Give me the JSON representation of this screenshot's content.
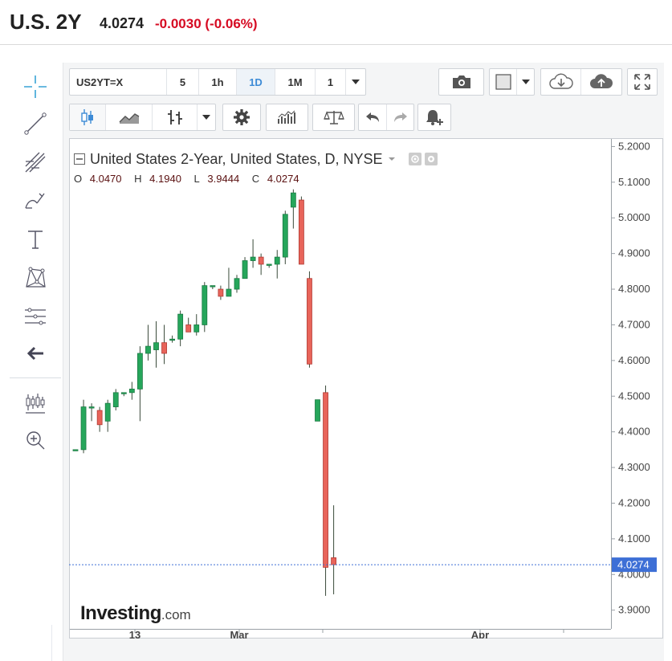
{
  "header": {
    "symbol": "U.S. 2Y",
    "price": "4.0274",
    "change": "-0.0030 (-0.06%)"
  },
  "left_tools": [
    {
      "name": "crosshair-icon"
    },
    {
      "name": "trend-line-icon"
    },
    {
      "name": "fib-icon"
    },
    {
      "name": "brush-icon"
    },
    {
      "name": "text-icon"
    },
    {
      "name": "pattern-icon"
    },
    {
      "name": "measure-icon"
    },
    {
      "name": "arrow-left-icon"
    },
    {
      "name": "indicators-icon"
    },
    {
      "name": "zoom-in-icon"
    }
  ],
  "toolbar": {
    "symbol": "US2YT=X",
    "intervals": [
      "5",
      "1h",
      "1D",
      "1M",
      "1"
    ],
    "active_interval": "1D"
  },
  "chart_data": {
    "type": "candlestick",
    "title": "United States 2-Year, United States, D, NYSE",
    "ohlc_legend": {
      "O": "4.0470",
      "H": "4.1940",
      "L": "3.9444",
      "C": "4.0274"
    },
    "y_ticks": [
      "5.2000",
      "5.1000",
      "5.0000",
      "4.9000",
      "4.8000",
      "4.7000",
      "4.6000",
      "4.5000",
      "4.4000",
      "4.3000",
      "4.2000",
      "4.1000",
      "4.0000",
      "3.9000"
    ],
    "ylim": [
      3.87,
      5.21
    ],
    "x_ticks": [
      "13",
      "Mar",
      "Apr"
    ],
    "last_price_label": "4.0274",
    "up_color": "#26a65b",
    "down_color": "#e8645a",
    "candles": [
      {
        "o": 4.35,
        "h": 4.35,
        "l": 4.35,
        "c": 4.35
      },
      {
        "o": 4.35,
        "h": 4.49,
        "l": 4.34,
        "c": 4.47
      },
      {
        "o": 4.47,
        "h": 4.48,
        "l": 4.43,
        "c": 4.47
      },
      {
        "o": 4.46,
        "h": 4.47,
        "l": 4.4,
        "c": 4.42
      },
      {
        "o": 4.43,
        "h": 4.49,
        "l": 4.4,
        "c": 4.48
      },
      {
        "o": 4.47,
        "h": 4.52,
        "l": 4.46,
        "c": 4.51
      },
      {
        "o": 4.51,
        "h": 4.51,
        "l": 4.5,
        "c": 4.51
      },
      {
        "o": 4.51,
        "h": 4.54,
        "l": 4.49,
        "c": 4.52
      },
      {
        "o": 4.52,
        "h": 4.64,
        "l": 4.43,
        "c": 4.62
      },
      {
        "o": 4.62,
        "h": 4.7,
        "l": 4.6,
        "c": 4.64
      },
      {
        "o": 4.63,
        "h": 4.71,
        "l": 4.58,
        "c": 4.65
      },
      {
        "o": 4.65,
        "h": 4.7,
        "l": 4.59,
        "c": 4.62
      },
      {
        "o": 4.66,
        "h": 4.67,
        "l": 4.65,
        "c": 4.66
      },
      {
        "o": 4.66,
        "h": 4.74,
        "l": 4.64,
        "c": 4.73
      },
      {
        "o": 4.7,
        "h": 4.72,
        "l": 4.68,
        "c": 4.68
      },
      {
        "o": 4.68,
        "h": 4.73,
        "l": 4.67,
        "c": 4.7
      },
      {
        "o": 4.7,
        "h": 4.82,
        "l": 4.68,
        "c": 4.81
      },
      {
        "o": 4.81,
        "h": 4.81,
        "l": 4.8,
        "c": 4.81
      },
      {
        "o": 4.8,
        "h": 4.81,
        "l": 4.77,
        "c": 4.78
      },
      {
        "o": 4.78,
        "h": 4.86,
        "l": 4.78,
        "c": 4.8
      },
      {
        "o": 4.8,
        "h": 4.84,
        "l": 4.79,
        "c": 4.83
      },
      {
        "o": 4.83,
        "h": 4.89,
        "l": 4.83,
        "c": 4.88
      },
      {
        "o": 4.88,
        "h": 4.94,
        "l": 4.86,
        "c": 4.89
      },
      {
        "o": 4.89,
        "h": 4.9,
        "l": 4.84,
        "c": 4.87
      },
      {
        "o": 4.87,
        "h": 4.87,
        "l": 4.86,
        "c": 4.87
      },
      {
        "o": 4.87,
        "h": 4.91,
        "l": 4.83,
        "c": 4.89
      },
      {
        "o": 4.89,
        "h": 5.02,
        "l": 4.87,
        "c": 5.01
      },
      {
        "o": 5.03,
        "h": 5.08,
        "l": 4.97,
        "c": 5.07
      },
      {
        "o": 5.05,
        "h": 5.06,
        "l": 4.87,
        "c": 4.87
      },
      {
        "o": 4.83,
        "h": 4.85,
        "l": 4.58,
        "c": 4.59
      },
      {
        "o": 4.43,
        "h": 4.49,
        "l": 4.43,
        "c": 4.49
      },
      {
        "o": 4.51,
        "h": 4.53,
        "l": 3.94,
        "c": 4.02
      },
      {
        "o": 4.047,
        "h": 4.194,
        "l": 3.9444,
        "c": 4.0274
      }
    ]
  }
}
